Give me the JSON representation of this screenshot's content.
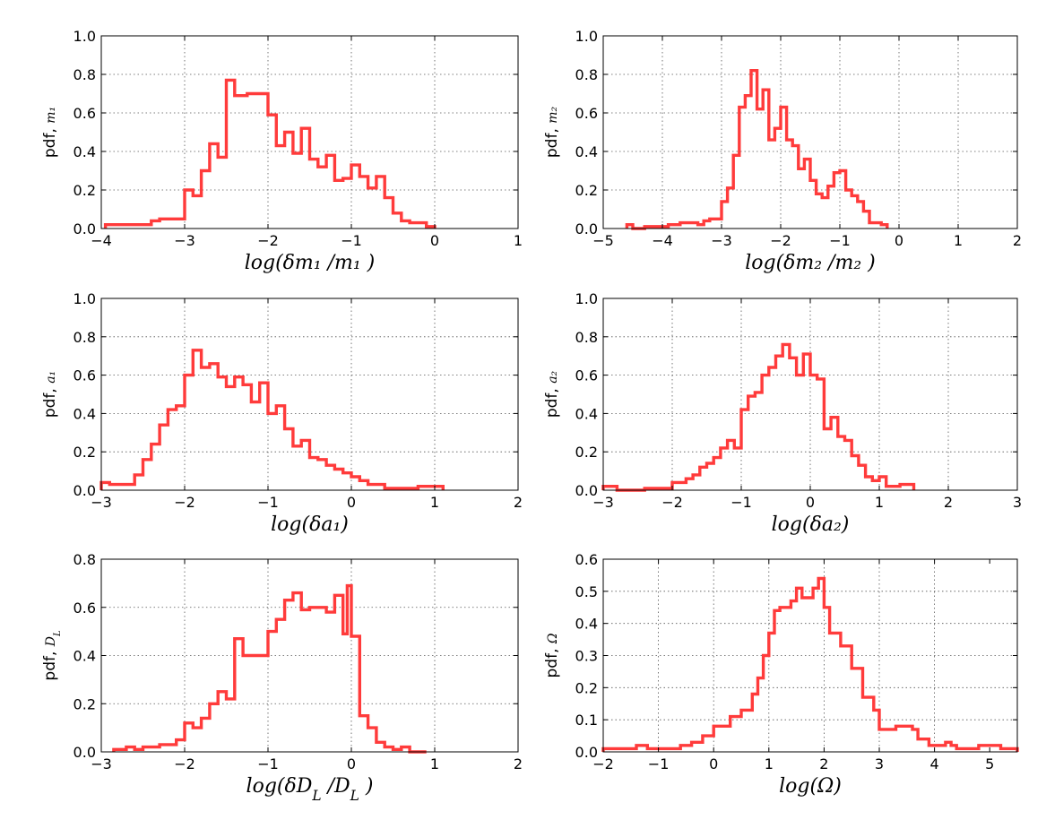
{
  "series_color": "#ff3b3b",
  "chart_data": [
    {
      "type": "histogram-step",
      "ylabel_prefix": "pdf,",
      "ylabel_var": "m₁",
      "xlabel": "log(δm₁ /m₁ )",
      "xlim": [
        -4,
        1
      ],
      "ylim": [
        0,
        1.0
      ],
      "xticks": [
        -4,
        -3,
        -2,
        -1,
        0,
        1
      ],
      "yticks": [
        0,
        0.2,
        0.4,
        0.6,
        0.8,
        1.0
      ],
      "xtick_labels": [
        "−4",
        "−3",
        "−2",
        "−1",
        "0",
        "1"
      ],
      "ytick_labels": [
        "0.0",
        "0.2",
        "0.4",
        "0.6",
        "0.8",
        "1.0"
      ],
      "bin_edges": [
        -3.95,
        -3.4,
        -3.3,
        -3.0,
        -2.9,
        -2.8,
        -2.7,
        -2.6,
        -2.5,
        -2.4,
        -2.25,
        -2.0,
        -1.9,
        -1.8,
        -1.7,
        -1.6,
        -1.5,
        -1.4,
        -1.3,
        -1.2,
        -1.1,
        -1.0,
        -0.9,
        -0.8,
        -0.7,
        -0.6,
        -0.5,
        -0.4,
        -0.3,
        -0.2,
        -0.1,
        0.0
      ],
      "values": [
        0.02,
        0.04,
        0.05,
        0.2,
        0.17,
        0.3,
        0.44,
        0.37,
        0.77,
        0.69,
        0.7,
        0.59,
        0.43,
        0.5,
        0.39,
        0.52,
        0.36,
        0.32,
        0.38,
        0.25,
        0.26,
        0.33,
        0.27,
        0.21,
        0.27,
        0.16,
        0.08,
        0.04,
        0.03,
        0.03,
        0.01
      ]
    },
    {
      "type": "histogram-step",
      "ylabel_prefix": "pdf,",
      "ylabel_var": "m₂",
      "xlabel": "log(δm₂ /m₂ )",
      "xlim": [
        -5,
        2
      ],
      "ylim": [
        0,
        1.0
      ],
      "xticks": [
        -5,
        -4,
        -3,
        -2,
        -1,
        0,
        1,
        2
      ],
      "yticks": [
        0,
        0.2,
        0.4,
        0.6,
        0.8,
        1.0
      ],
      "xtick_labels": [
        "−5",
        "−4",
        "−3",
        "−2",
        "−1",
        "0",
        "1",
        "2"
      ],
      "ytick_labels": [
        "0.0",
        "0.2",
        "0.4",
        "0.6",
        "0.8",
        "1.0"
      ],
      "bin_edges": [
        -4.6,
        -4.5,
        -4.3,
        -3.9,
        -3.7,
        -3.4,
        -3.3,
        -3.2,
        -3.0,
        -2.9,
        -2.8,
        -2.7,
        -2.6,
        -2.5,
        -2.4,
        -2.3,
        -2.2,
        -2.1,
        -2.0,
        -1.9,
        -1.8,
        -1.7,
        -1.6,
        -1.5,
        -1.4,
        -1.3,
        -1.2,
        -1.1,
        -1.0,
        -0.9,
        -0.8,
        -0.7,
        -0.6,
        -0.5,
        -0.3,
        -0.2
      ],
      "values": [
        0.02,
        0.0,
        0.01,
        0.02,
        0.03,
        0.02,
        0.04,
        0.05,
        0.14,
        0.21,
        0.38,
        0.63,
        0.69,
        0.82,
        0.62,
        0.72,
        0.46,
        0.52,
        0.63,
        0.46,
        0.43,
        0.31,
        0.36,
        0.25,
        0.18,
        0.16,
        0.22,
        0.29,
        0.3,
        0.2,
        0.17,
        0.14,
        0.09,
        0.03,
        0.02
      ]
    },
    {
      "type": "histogram-step",
      "ylabel_prefix": "pdf,",
      "ylabel_var": "a₁",
      "xlabel": "log(δa₁)",
      "xlim": [
        -3,
        2
      ],
      "ylim": [
        0,
        1.0
      ],
      "xticks": [
        -3,
        -2,
        -1,
        0,
        1,
        2
      ],
      "yticks": [
        0,
        0.2,
        0.4,
        0.6,
        0.8,
        1.0
      ],
      "xtick_labels": [
        "−3",
        "−2",
        "−1",
        "0",
        "1",
        "2"
      ],
      "ytick_labels": [
        "0.0",
        "0.2",
        "0.4",
        "0.6",
        "0.8",
        "1.0"
      ],
      "bin_edges": [
        -3.0,
        -2.9,
        -2.6,
        -2.5,
        -2.4,
        -2.3,
        -2.2,
        -2.1,
        -2.0,
        -1.9,
        -1.8,
        -1.7,
        -1.6,
        -1.5,
        -1.4,
        -1.3,
        -1.2,
        -1.1,
        -1.0,
        -0.9,
        -0.8,
        -0.7,
        -0.6,
        -0.5,
        -0.4,
        -0.3,
        -0.2,
        -0.1,
        0.0,
        0.1,
        0.2,
        0.4,
        0.8,
        1.1
      ],
      "values": [
        0.04,
        0.03,
        0.08,
        0.16,
        0.24,
        0.34,
        0.42,
        0.44,
        0.6,
        0.73,
        0.64,
        0.66,
        0.59,
        0.54,
        0.59,
        0.55,
        0.46,
        0.56,
        0.4,
        0.44,
        0.32,
        0.23,
        0.26,
        0.17,
        0.16,
        0.13,
        0.11,
        0.09,
        0.07,
        0.05,
        0.03,
        0.01,
        0.02
      ]
    },
    {
      "type": "histogram-step",
      "ylabel_prefix": "pdf,",
      "ylabel_var": "a₂",
      "xlabel": "log(δa₂)",
      "xlim": [
        -3,
        3
      ],
      "ylim": [
        0,
        1.0
      ],
      "xticks": [
        -3,
        -2,
        -1,
        0,
        1,
        2,
        3
      ],
      "yticks": [
        0,
        0.2,
        0.4,
        0.6,
        0.8,
        1.0
      ],
      "xtick_labels": [
        "−3",
        "−2",
        "−1",
        "0",
        "1",
        "2",
        "3"
      ],
      "ytick_labels": [
        "0.0",
        "0.2",
        "0.4",
        "0.6",
        "0.8",
        "1.0"
      ],
      "bin_edges": [
        -3.0,
        -2.8,
        -2.4,
        -2.0,
        -1.8,
        -1.7,
        -1.6,
        -1.5,
        -1.4,
        -1.3,
        -1.2,
        -1.1,
        -1.0,
        -0.9,
        -0.8,
        -0.7,
        -0.6,
        -0.5,
        -0.4,
        -0.3,
        -0.2,
        -0.1,
        0.0,
        0.1,
        0.2,
        0.3,
        0.4,
        0.5,
        0.6,
        0.7,
        0.8,
        0.9,
        1.0,
        1.1,
        1.3,
        1.5
      ],
      "values": [
        0.02,
        0.0,
        0.01,
        0.04,
        0.06,
        0.08,
        0.12,
        0.14,
        0.17,
        0.22,
        0.26,
        0.22,
        0.42,
        0.49,
        0.51,
        0.6,
        0.64,
        0.7,
        0.76,
        0.69,
        0.6,
        0.71,
        0.6,
        0.58,
        0.32,
        0.38,
        0.28,
        0.26,
        0.18,
        0.13,
        0.07,
        0.05,
        0.07,
        0.02,
        0.03
      ]
    },
    {
      "type": "histogram-step",
      "ylabel_prefix": "pdf,",
      "ylabel_var": "D_L",
      "xlabel": "log(δD_L /D_L )",
      "xlim": [
        -3,
        2
      ],
      "ylim": [
        0,
        0.8
      ],
      "xticks": [
        -3,
        -2,
        -1,
        0,
        1,
        2
      ],
      "yticks": [
        0,
        0.2,
        0.4,
        0.6,
        0.8
      ],
      "xtick_labels": [
        "−3",
        "−2",
        "−1",
        "0",
        "1",
        "2"
      ],
      "ytick_labels": [
        "0.0",
        "0.2",
        "0.4",
        "0.6",
        "0.8"
      ],
      "bin_edges": [
        -2.85,
        -2.7,
        -2.6,
        -2.5,
        -2.3,
        -2.1,
        -2.0,
        -1.9,
        -1.8,
        -1.7,
        -1.6,
        -1.5,
        -1.4,
        -1.3,
        -1.0,
        -0.9,
        -0.8,
        -0.7,
        -0.6,
        -0.5,
        -0.4,
        -0.3,
        -0.2,
        -0.1,
        -0.05,
        0.0,
        0.1,
        0.2,
        0.3,
        0.4,
        0.5,
        0.6,
        0.7,
        0.9
      ],
      "values": [
        0.01,
        0.02,
        0.01,
        0.02,
        0.03,
        0.05,
        0.12,
        0.1,
        0.14,
        0.2,
        0.25,
        0.22,
        0.47,
        0.4,
        0.5,
        0.55,
        0.63,
        0.66,
        0.59,
        0.6,
        0.6,
        0.58,
        0.65,
        0.49,
        0.69,
        0.48,
        0.15,
        0.1,
        0.04,
        0.02,
        0.01,
        0.02,
        0.0
      ]
    },
    {
      "type": "histogram-step",
      "ylabel_prefix": "pdf,",
      "ylabel_var": "Ω",
      "xlabel": "log(Ω)",
      "xlim": [
        -2,
        5.5
      ],
      "ylim": [
        0,
        0.6
      ],
      "xticks": [
        -2,
        -1,
        0,
        1,
        2,
        3,
        4,
        5
      ],
      "yticks": [
        0,
        0.1,
        0.2,
        0.3,
        0.4,
        0.5,
        0.6
      ],
      "xtick_labels": [
        "−2",
        "−1",
        "0",
        "1",
        "2",
        "3",
        "4",
        "5"
      ],
      "ytick_labels": [
        "0.0",
        "0.1",
        "0.2",
        "0.3",
        "0.4",
        "0.5",
        "0.6"
      ],
      "bin_edges": [
        -2.0,
        -1.4,
        -1.2,
        -0.6,
        -0.4,
        -0.2,
        0.0,
        0.3,
        0.5,
        0.7,
        0.8,
        0.9,
        1.0,
        1.1,
        1.2,
        1.4,
        1.5,
        1.6,
        1.8,
        1.9,
        2.0,
        2.1,
        2.3,
        2.5,
        2.7,
        2.9,
        3.0,
        3.3,
        3.6,
        3.7,
        3.9,
        4.2,
        4.3,
        4.4,
        4.8,
        5.2,
        5.5
      ],
      "values": [
        0.01,
        0.02,
        0.01,
        0.02,
        0.03,
        0.05,
        0.08,
        0.11,
        0.13,
        0.18,
        0.23,
        0.3,
        0.37,
        0.44,
        0.45,
        0.47,
        0.51,
        0.48,
        0.51,
        0.54,
        0.45,
        0.37,
        0.33,
        0.26,
        0.17,
        0.13,
        0.07,
        0.08,
        0.07,
        0.04,
        0.02,
        0.03,
        0.02,
        0.01,
        0.02,
        0.01
      ]
    }
  ]
}
